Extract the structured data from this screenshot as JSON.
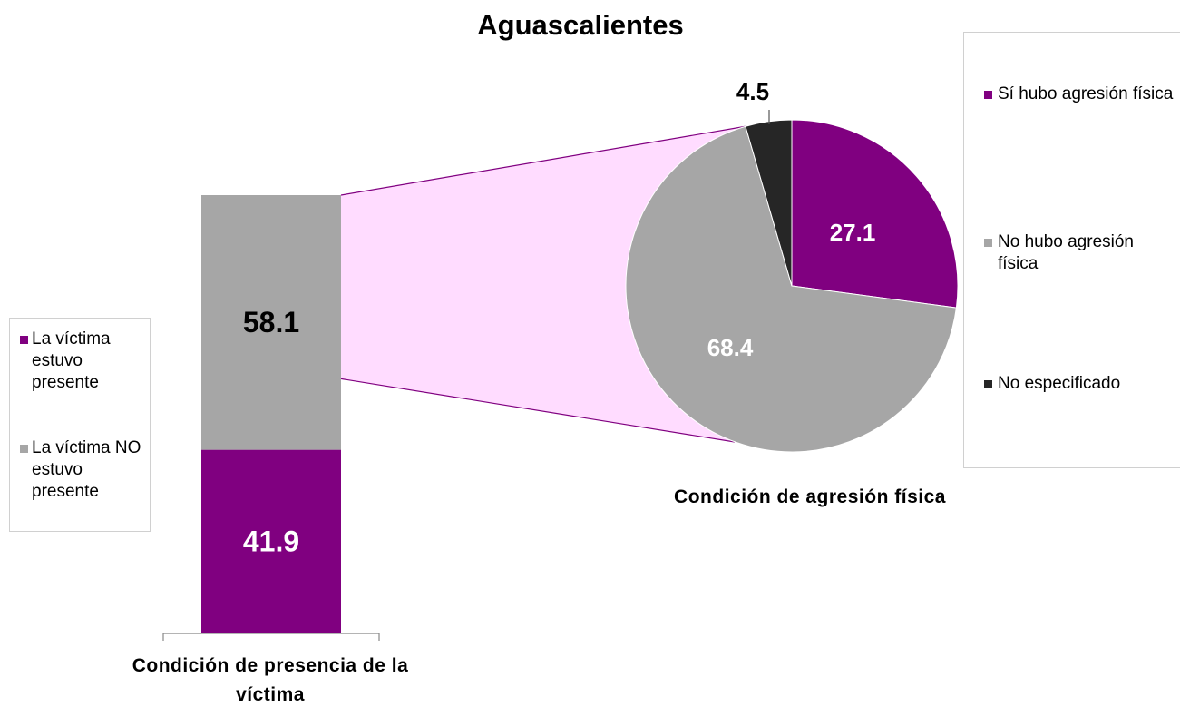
{
  "chart_data": {
    "type": "bar-of-pie",
    "title": "Aguascalientes",
    "bar": {
      "type": "bar",
      "xlabel": "Condición de presencia de la víctima",
      "series": [
        {
          "name": "La víctima estuvo presente",
          "color": "#800080",
          "values": [
            41.9
          ]
        },
        {
          "name": "La víctima NO estuvo presente",
          "color": "#a6a6a6",
          "values": [
            58.1
          ]
        }
      ]
    },
    "pie": {
      "type": "pie",
      "xlabel": "Condición de agresión física",
      "categories": [
        "Sí hubo agresión física",
        "No hubo agresión física",
        "No especificado"
      ],
      "values": [
        27.1,
        68.4,
        4.5
      ],
      "colors": [
        "#800080",
        "#a6a6a6",
        "#262626"
      ]
    }
  }
}
